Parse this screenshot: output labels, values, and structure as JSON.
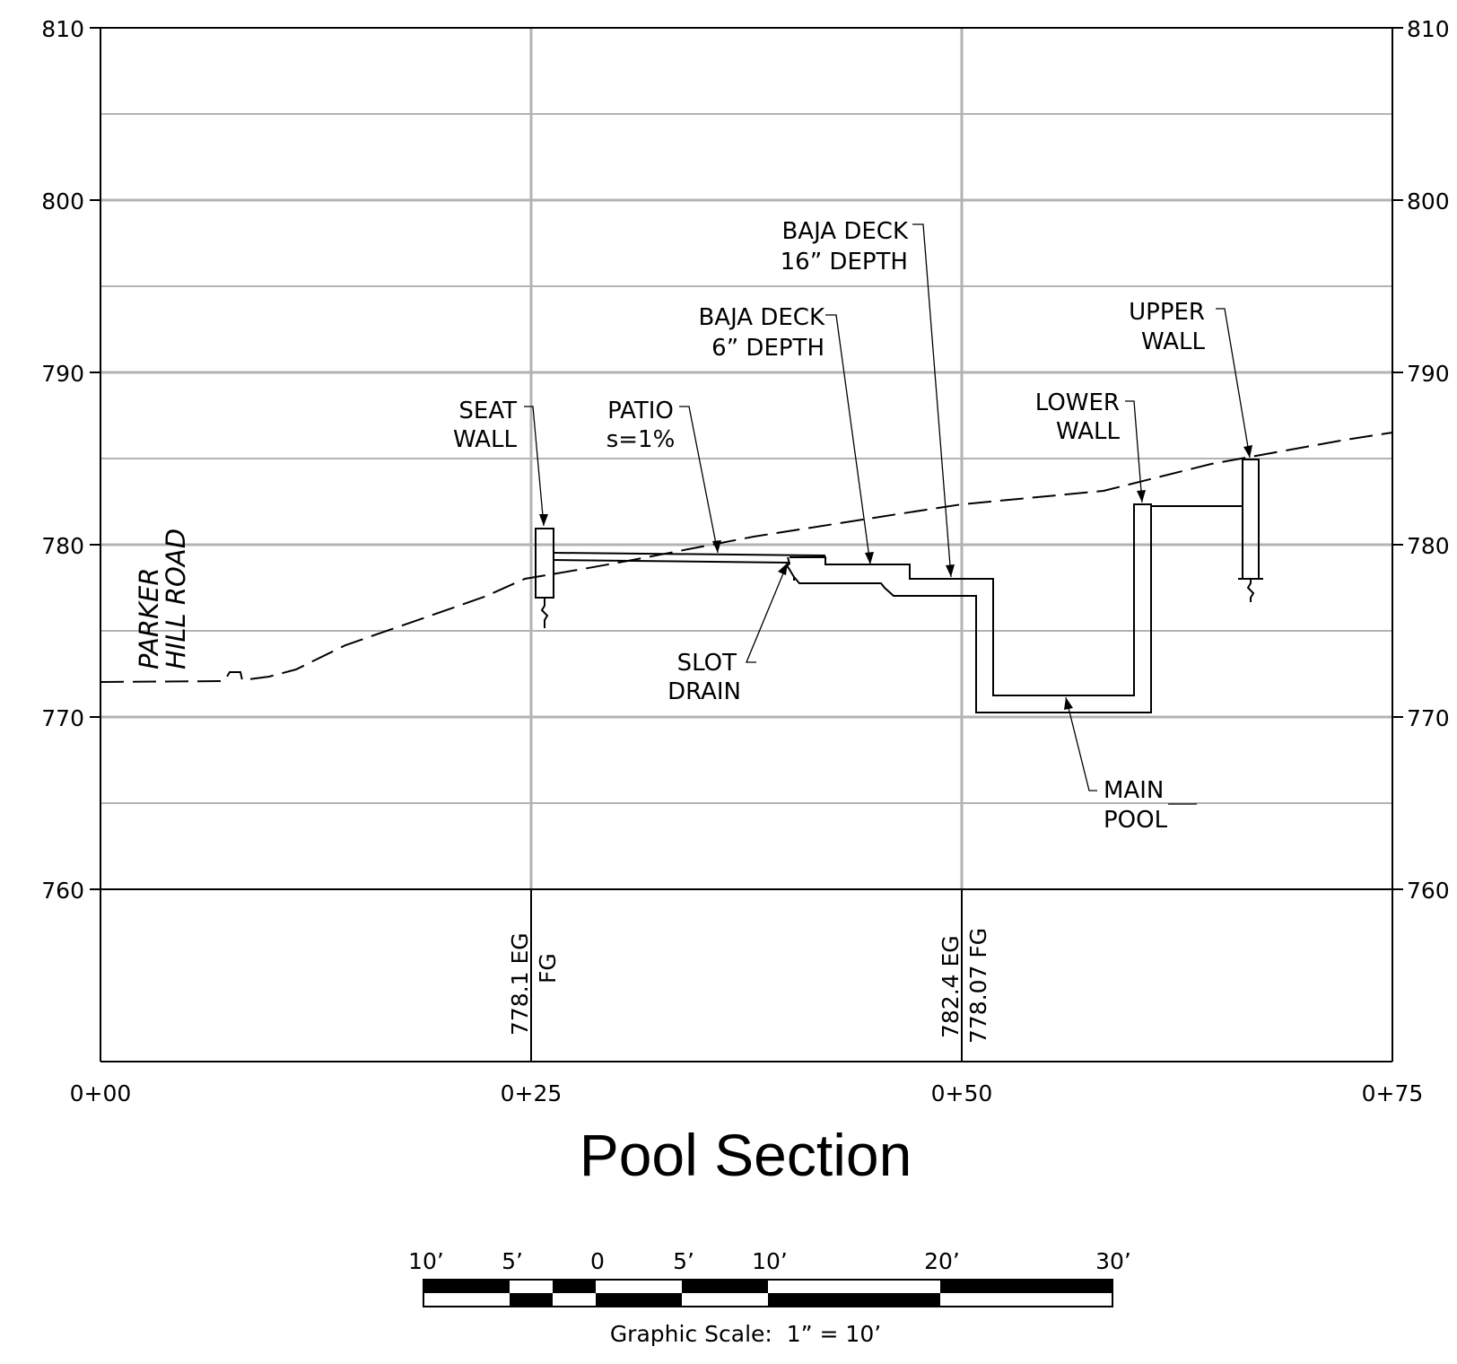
{
  "title": "Pool Section",
  "elevation_ticks": [
    "810",
    "800",
    "790",
    "780",
    "770",
    "760"
  ],
  "station_ticks": [
    "0+00",
    "0+25",
    "0+50",
    "0+75"
  ],
  "road_label": [
    "PARKER",
    "HILL ROAD"
  ],
  "callouts": {
    "seat_wall": [
      "SEAT",
      "WALL"
    ],
    "patio": [
      "PATIO",
      "s=1%"
    ],
    "baja_deck_6": [
      "BAJA DECK",
      "6” DEPTH"
    ],
    "baja_deck_16": [
      "BAJA DECK",
      "16” DEPTH"
    ],
    "upper_wall": [
      "UPPER",
      "WALL"
    ],
    "lower_wall": [
      "LOWER",
      "WALL"
    ],
    "slot_drain": [
      "SLOT",
      "DRAIN"
    ],
    "main_pool": [
      "MAIN",
      "POOL"
    ]
  },
  "grade_readouts": {
    "sta_25": {
      "eg": "778.1 EG",
      "fg": "FG"
    },
    "sta_50": {
      "eg": "782.4 EG",
      "fg": "778.07 FG"
    }
  },
  "graphic_scale": {
    "labels": [
      "10’",
      "5’",
      "0",
      "5’",
      "10’",
      "20’",
      "30’"
    ],
    "caption": "Graphic Scale:  1” = 10’"
  },
  "colors": {
    "ink": "#000000",
    "grid": "#b3b3b3",
    "paper": "#ffffff"
  }
}
